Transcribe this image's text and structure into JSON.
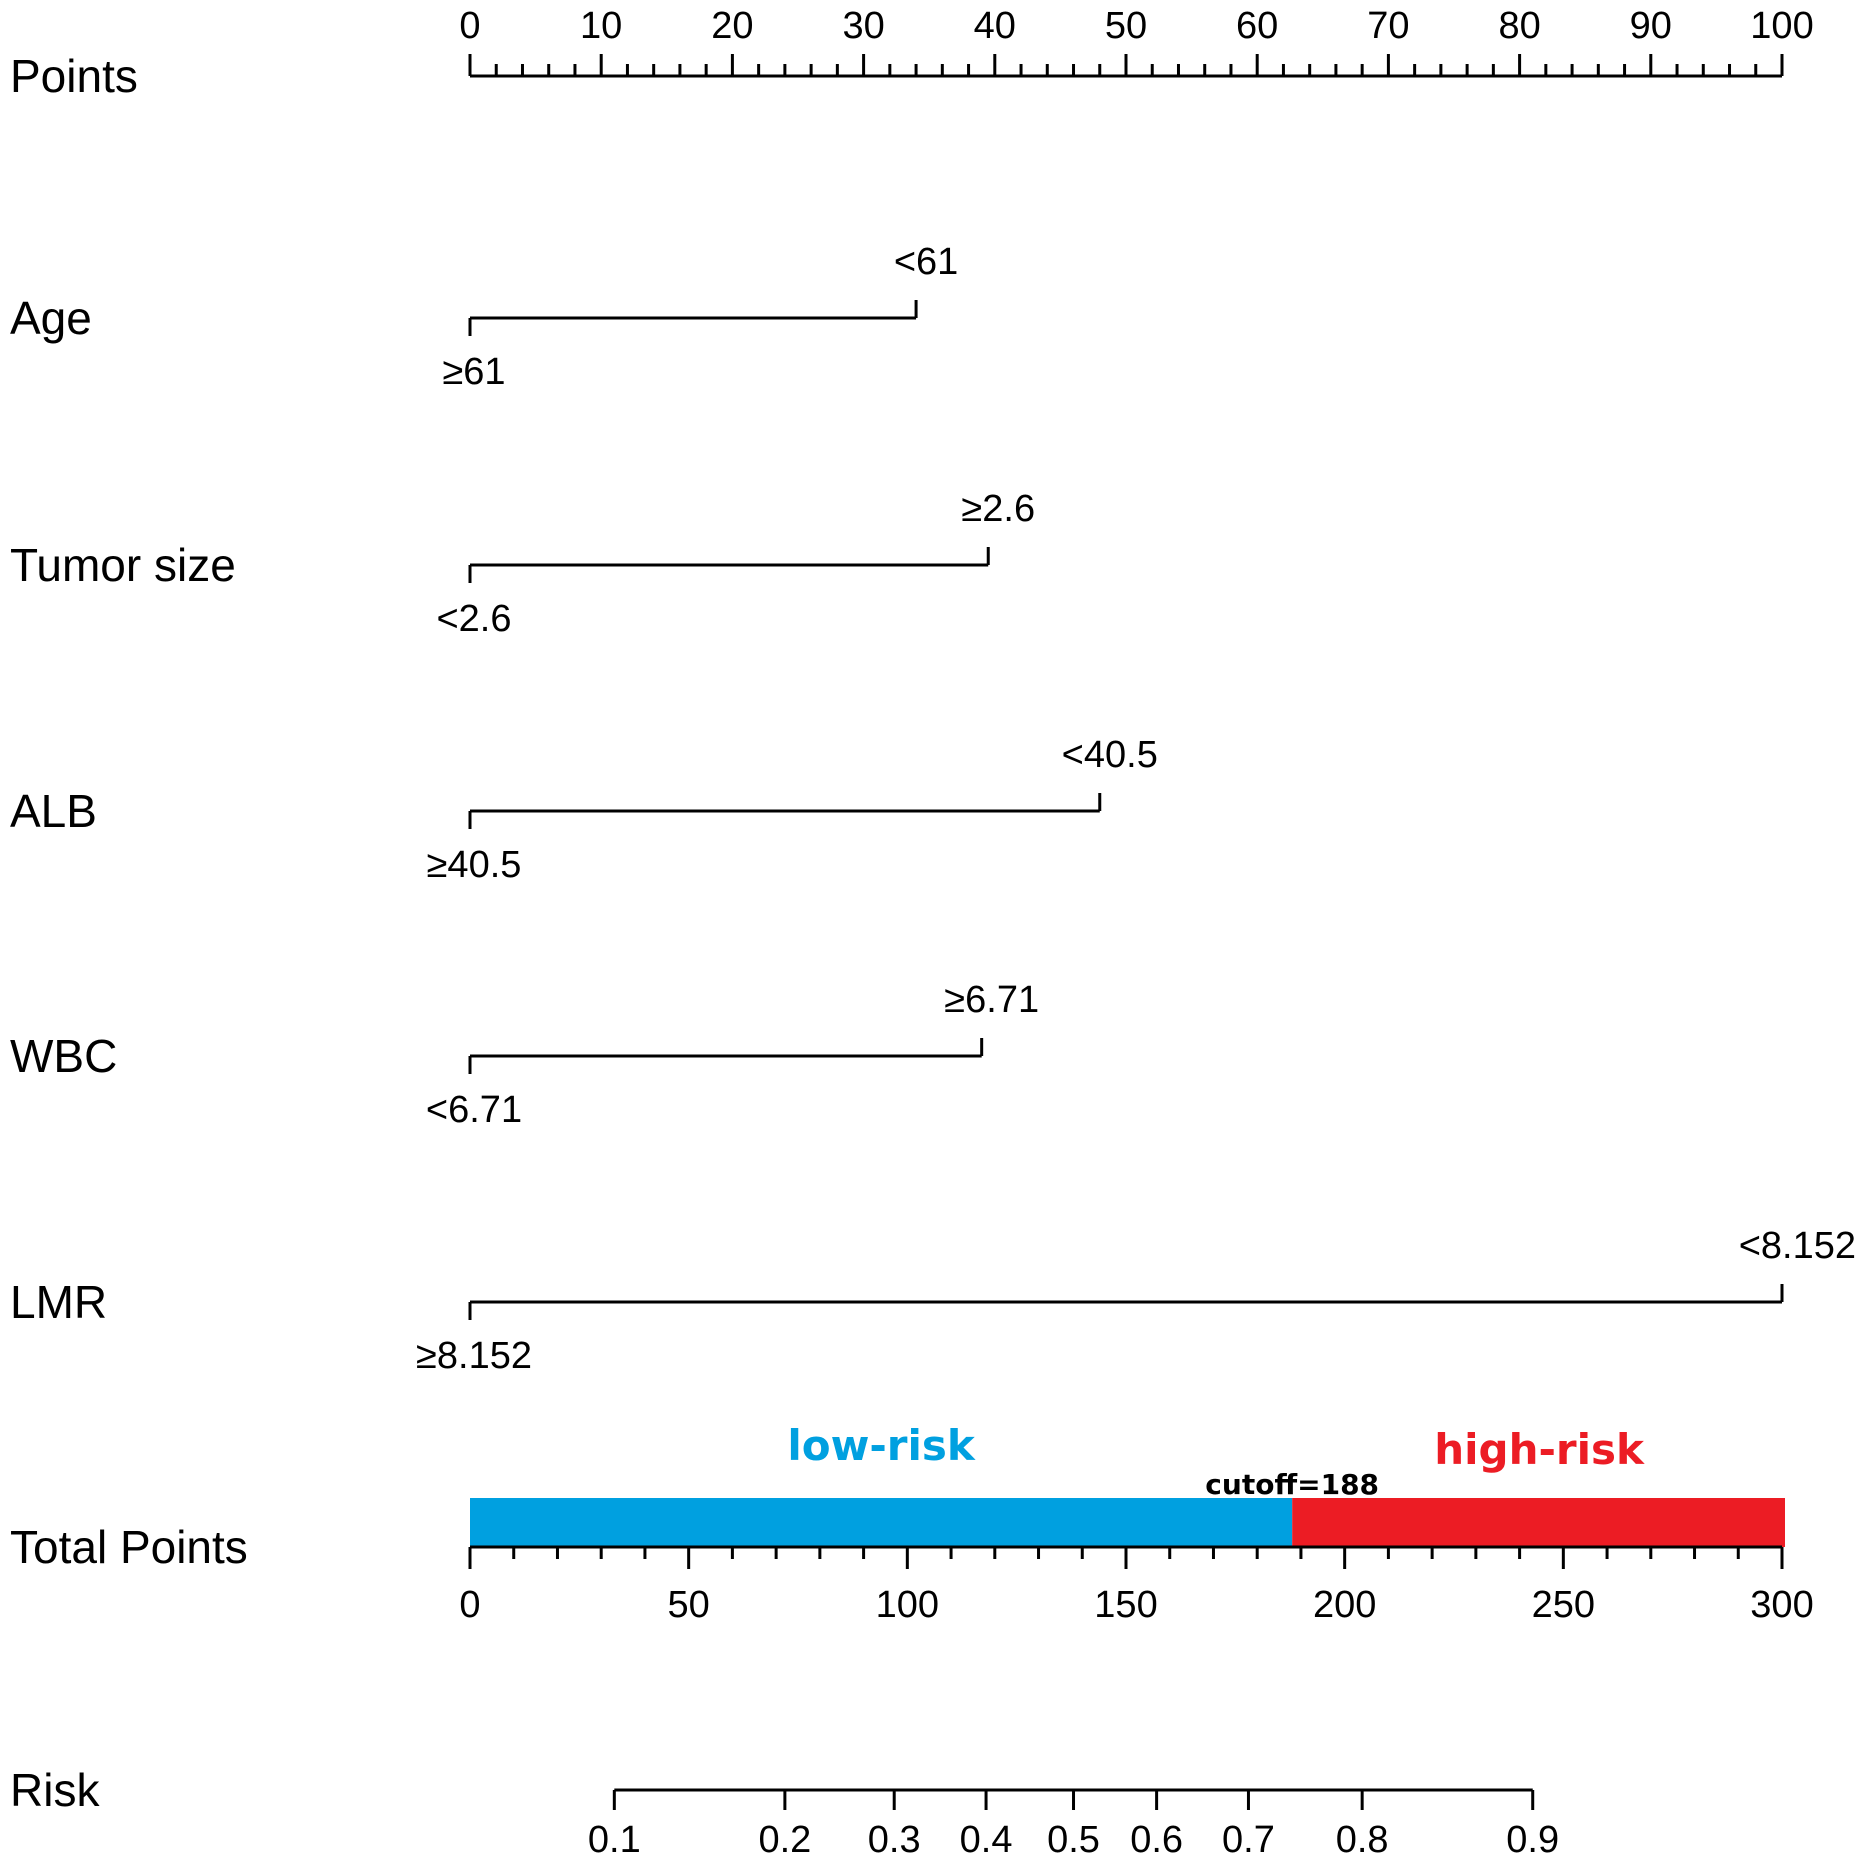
{
  "chart_data": {
    "type": "nomogram",
    "points_scale": {
      "label": "Points",
      "range": [
        0,
        100
      ],
      "major_ticks": [
        0,
        10,
        20,
        30,
        40,
        50,
        60,
        70,
        80,
        90,
        100
      ],
      "minor_step": 2
    },
    "variables": [
      {
        "name": "Age",
        "levels": [
          {
            "label": "≥61",
            "points": 0
          },
          {
            "label": "<61",
            "points": 34
          }
        ]
      },
      {
        "name": "Tumor size",
        "levels": [
          {
            "label": "<2.6",
            "points": 0
          },
          {
            "label": "≥2.6",
            "points": 39.5
          }
        ]
      },
      {
        "name": "ALB",
        "levels": [
          {
            "label": "≥40.5",
            "points": 0
          },
          {
            "label": "<40.5",
            "points": 48
          }
        ]
      },
      {
        "name": "WBC",
        "levels": [
          {
            "label": "<6.71",
            "points": 0
          },
          {
            "label": "≥6.71",
            "points": 39
          }
        ]
      },
      {
        "name": "LMR",
        "levels": [
          {
            "label": "≥8.152",
            "points": 0
          },
          {
            "label": "<8.152",
            "points": 100
          }
        ]
      }
    ],
    "total_points": {
      "label": "Total Points",
      "range": [
        0,
        300
      ],
      "major_ticks": [
        0,
        50,
        100,
        150,
        200,
        250,
        300
      ],
      "minor_step": 10,
      "cutoff": 188,
      "cutoff_label": "cutoff=188",
      "low_label": "low-risk",
      "high_label": "high-risk",
      "low_color": "#00a0e0",
      "high_color": "#ec1c24"
    },
    "risk": {
      "label": "Risk",
      "ticks": [
        {
          "value": 0.1,
          "total_points": 33
        },
        {
          "value": 0.2,
          "total_points": 72
        },
        {
          "value": 0.3,
          "total_points": 97
        },
        {
          "value": 0.4,
          "total_points": 118
        },
        {
          "value": 0.5,
          "total_points": 138
        },
        {
          "value": 0.6,
          "total_points": 157
        },
        {
          "value": 0.7,
          "total_points": 178
        },
        {
          "value": 0.8,
          "total_points": 204
        },
        {
          "value": 0.9,
          "total_points": 243
        }
      ]
    }
  }
}
